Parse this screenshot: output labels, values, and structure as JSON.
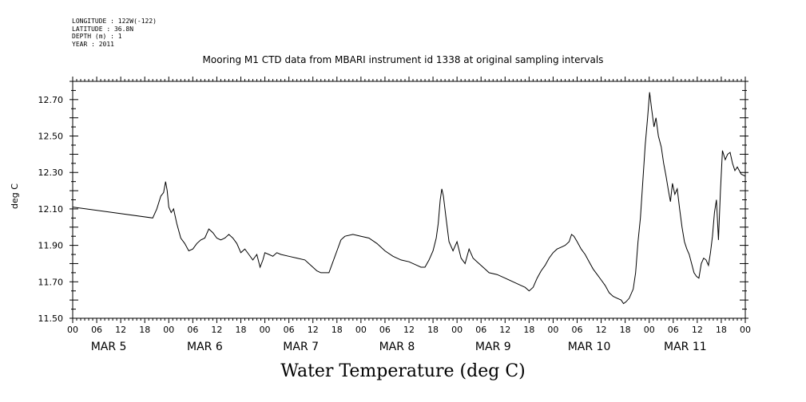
{
  "meta": {
    "longitude": "LONGITUDE : 122W(-122)",
    "latitude": "LATITUDE : 36.8N",
    "depth": "DEPTH (m) : 1",
    "year": "YEAR : 2011"
  },
  "chart_data": {
    "type": "line",
    "title": "Mooring M1 CTD data from MBARI instrument id 1338 at original sampling intervals",
    "xlabel": "Water Temperature (deg C)",
    "ylabel": "deg C",
    "ylim": [
      11.5,
      12.8
    ],
    "yticks": [
      "11.50",
      "11.70",
      "11.90",
      "12.10",
      "12.30",
      "12.50",
      "12.70"
    ],
    "x_unit": "hours since 2011-03-05 00:00",
    "xlim": [
      0,
      168
    ],
    "hour_tick_labels": [
      "00",
      "06",
      "12",
      "18",
      "00",
      "06",
      "12",
      "18",
      "00",
      "06",
      "12",
      "18",
      "00",
      "06",
      "12",
      "18",
      "00",
      "06",
      "12",
      "18",
      "00",
      "06",
      "12",
      "18",
      "00",
      "06",
      "12",
      "18",
      "00"
    ],
    "day_labels": [
      {
        "text": "MAR  5",
        "hour": 9
      },
      {
        "text": "MAR  6",
        "hour": 33
      },
      {
        "text": "MAR  7",
        "hour": 57
      },
      {
        "text": "MAR  8",
        "hour": 81
      },
      {
        "text": "MAR  9",
        "hour": 105
      },
      {
        "text": "MAR 10",
        "hour": 129
      },
      {
        "text": "MAR 11",
        "hour": 153
      }
    ],
    "grid": false,
    "series": [
      {
        "color": "#000000",
        "points": [
          [
            0,
            12.11
          ],
          [
            20,
            12.05
          ],
          [
            21,
            12.1
          ],
          [
            22,
            12.17
          ],
          [
            22.7,
            12.19
          ],
          [
            23.2,
            12.25
          ],
          [
            23.6,
            12.2
          ],
          [
            24,
            12.11
          ],
          [
            24.6,
            12.08
          ],
          [
            25.2,
            12.1
          ],
          [
            26,
            12.02
          ],
          [
            27,
            11.94
          ],
          [
            28,
            11.91
          ],
          [
            29,
            11.87
          ],
          [
            30,
            11.88
          ],
          [
            31,
            11.91
          ],
          [
            32,
            11.93
          ],
          [
            33,
            11.94
          ],
          [
            34,
            11.99
          ],
          [
            35,
            11.97
          ],
          [
            36,
            11.94
          ],
          [
            37,
            11.93
          ],
          [
            38,
            11.94
          ],
          [
            39,
            11.96
          ],
          [
            40,
            11.94
          ],
          [
            41,
            11.91
          ],
          [
            42,
            11.86
          ],
          [
            43,
            11.88
          ],
          [
            44,
            11.85
          ],
          [
            45,
            11.82
          ],
          [
            46,
            11.85
          ],
          [
            46.8,
            11.78
          ],
          [
            47.5,
            11.82
          ],
          [
            48,
            11.86
          ],
          [
            49,
            11.85
          ],
          [
            50,
            11.84
          ],
          [
            51,
            11.86
          ],
          [
            52,
            11.85
          ],
          [
            54,
            11.84
          ],
          [
            56,
            11.83
          ],
          [
            58,
            11.82
          ],
          [
            59,
            11.8
          ],
          [
            60,
            11.78
          ],
          [
            61,
            11.76
          ],
          [
            62,
            11.75
          ],
          [
            63,
            11.75
          ],
          [
            64,
            11.75
          ],
          [
            65,
            11.81
          ],
          [
            66,
            11.87
          ],
          [
            67,
            11.93
          ],
          [
            68,
            11.95
          ],
          [
            70,
            11.96
          ],
          [
            72,
            11.95
          ],
          [
            74,
            11.94
          ],
          [
            76,
            11.91
          ],
          [
            78,
            11.87
          ],
          [
            80,
            11.84
          ],
          [
            82,
            11.82
          ],
          [
            84,
            11.81
          ],
          [
            86,
            11.79
          ],
          [
            87,
            11.78
          ],
          [
            88,
            11.78
          ],
          [
            89,
            11.82
          ],
          [
            90,
            11.87
          ],
          [
            90.8,
            11.94
          ],
          [
            91.3,
            12.02
          ],
          [
            91.8,
            12.15
          ],
          [
            92.2,
            12.21
          ],
          [
            92.6,
            12.17
          ],
          [
            93.2,
            12.06
          ],
          [
            94,
            11.92
          ],
          [
            95,
            11.87
          ],
          [
            96,
            11.92
          ],
          [
            97,
            11.83
          ],
          [
            98,
            11.8
          ],
          [
            99,
            11.88
          ],
          [
            100,
            11.83
          ],
          [
            101,
            11.81
          ],
          [
            102,
            11.79
          ],
          [
            103,
            11.77
          ],
          [
            104,
            11.75
          ],
          [
            106,
            11.74
          ],
          [
            108,
            11.72
          ],
          [
            110,
            11.7
          ],
          [
            112,
            11.68
          ],
          [
            113,
            11.67
          ],
          [
            114,
            11.65
          ],
          [
            115,
            11.67
          ],
          [
            116,
            11.72
          ],
          [
            117,
            11.76
          ],
          [
            118,
            11.79
          ],
          [
            119,
            11.83
          ],
          [
            120,
            11.86
          ],
          [
            121,
            11.88
          ],
          [
            122,
            11.89
          ],
          [
            123,
            11.9
          ],
          [
            124,
            11.92
          ],
          [
            124.6,
            11.96
          ],
          [
            125.2,
            11.95
          ],
          [
            126,
            11.92
          ],
          [
            127,
            11.88
          ],
          [
            128,
            11.85
          ],
          [
            129,
            11.81
          ],
          [
            130,
            11.77
          ],
          [
            131,
            11.74
          ],
          [
            132,
            11.71
          ],
          [
            133,
            11.68
          ],
          [
            134,
            11.64
          ],
          [
            135,
            11.62
          ],
          [
            136,
            11.61
          ],
          [
            137,
            11.6
          ],
          [
            137.6,
            11.58
          ],
          [
            138.2,
            11.59
          ],
          [
            139,
            11.61
          ],
          [
            140,
            11.66
          ],
          [
            140.6,
            11.75
          ],
          [
            141.2,
            11.92
          ],
          [
            141.8,
            12.05
          ],
          [
            142.4,
            12.25
          ],
          [
            143,
            12.45
          ],
          [
            143.6,
            12.6
          ],
          [
            144.1,
            12.74
          ],
          [
            144.6,
            12.65
          ],
          [
            145.2,
            12.55
          ],
          [
            145.7,
            12.6
          ],
          [
            146.3,
            12.5
          ],
          [
            147,
            12.44
          ],
          [
            147.6,
            12.35
          ],
          [
            148.2,
            12.28
          ],
          [
            148.8,
            12.2
          ],
          [
            149.3,
            12.14
          ],
          [
            149.8,
            12.24
          ],
          [
            150.4,
            12.18
          ],
          [
            151,
            12.21
          ],
          [
            151.6,
            12.1
          ],
          [
            152.2,
            12.0
          ],
          [
            152.8,
            11.92
          ],
          [
            153.4,
            11.88
          ],
          [
            154,
            11.85
          ],
          [
            154.6,
            11.8
          ],
          [
            155.2,
            11.75
          ],
          [
            155.8,
            11.73
          ],
          [
            156.4,
            11.72
          ],
          [
            157,
            11.8
          ],
          [
            157.6,
            11.83
          ],
          [
            158.2,
            11.82
          ],
          [
            158.8,
            11.79
          ],
          [
            159.3,
            11.86
          ],
          [
            159.8,
            11.95
          ],
          [
            160.3,
            12.08
          ],
          [
            160.8,
            12.15
          ],
          [
            161.3,
            11.93
          ],
          [
            161.8,
            12.2
          ],
          [
            162.3,
            12.42
          ],
          [
            163,
            12.37
          ],
          [
            163.6,
            12.4
          ],
          [
            164.2,
            12.41
          ],
          [
            164.8,
            12.35
          ],
          [
            165.4,
            12.31
          ],
          [
            166,
            12.33
          ],
          [
            167,
            12.29
          ],
          [
            168,
            12.28
          ]
        ]
      }
    ]
  }
}
